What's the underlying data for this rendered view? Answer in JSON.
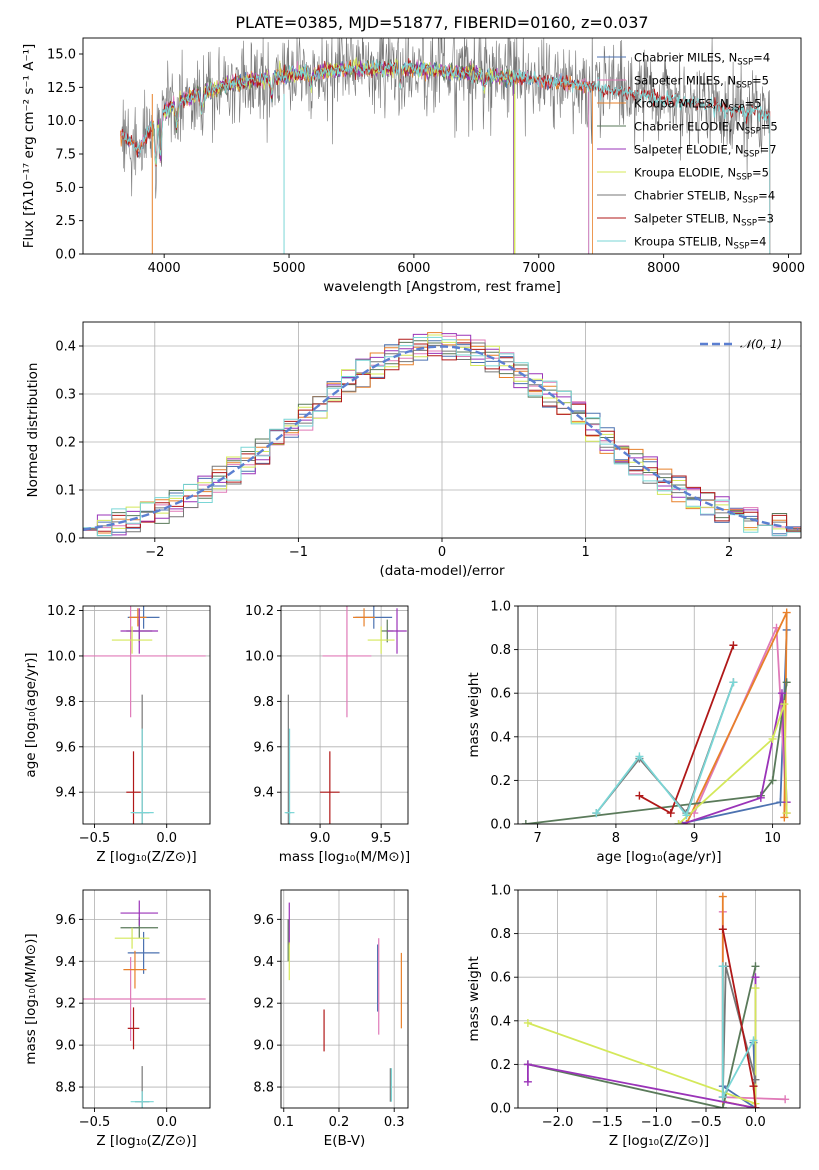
{
  "colors": {
    "Chabrier MILES": "#4c72b0",
    "Salpeter MILES": "#e07ab8",
    "Kroupa MILES": "#e8802a",
    "Chabrier ELODIE": "#5a7a5a",
    "Salpeter ELODIE": "#9a33b8",
    "Kroupa ELODIE": "#d4e85a",
    "Chabrier STELIB": "#777777",
    "Salpeter STELIB": "#b01818",
    "Kroupa STELIB": "#7ad6d6"
  },
  "chart_data": [
    {
      "id": "spectrum",
      "type": "line",
      "title": "PLATE=0385, MJD=51877, FIBERID=0160, z=0.037",
      "xlabel": "wavelength [Angstrom, rest frame]",
      "ylabel": "Flux [fλ10⁻¹⁷ erg cm⁻² s⁻¹ A⁻¹]",
      "xlim": [
        3350,
        9100
      ],
      "ylim": [
        0,
        16.2
      ],
      "xticks": [
        4000,
        5000,
        6000,
        7000,
        8000,
        9000
      ],
      "yticks": [
        0.0,
        2.5,
        5.0,
        7.5,
        10.0,
        12.5,
        15.0
      ],
      "legend_position": "top-right",
      "continuum": [
        [
          3660,
          9.0
        ],
        [
          3800,
          7.8
        ],
        [
          3950,
          10.4
        ],
        [
          4200,
          11.8
        ],
        [
          4500,
          12.7
        ],
        [
          5000,
          13.4
        ],
        [
          5500,
          13.9
        ],
        [
          6000,
          13.9
        ],
        [
          6500,
          13.5
        ],
        [
          7000,
          13.0
        ],
        [
          7400,
          12.6
        ],
        [
          8000,
          11.6
        ],
        [
          8500,
          11.0
        ],
        [
          8850,
          10.4
        ]
      ],
      "series": [
        {
          "name": "Chabrier MILES, N_SSP=4",
          "legend_name": "Chabrier MILES, N",
          "legend_value": "4",
          "range": [
            3650,
            7400
          ]
        },
        {
          "name": "Salpeter MILES, N_SSP=5",
          "legend_name": "Salpeter MILES, N",
          "legend_value": "5",
          "range": [
            3650,
            7400
          ]
        },
        {
          "name": "Kroupa MILES, N_SSP=5",
          "legend_name": "Kroupa MILES, N",
          "legend_value": "5",
          "range": [
            3650,
            7430
          ]
        },
        {
          "name": "Chabrier ELODIE, N_SSP=5",
          "legend_name": "Chabrier ELODIE, N",
          "legend_value": "5",
          "range": [
            3900,
            6800
          ]
        },
        {
          "name": "Salpeter ELODIE, N_SSP=7",
          "legend_name": "Salpeter ELODIE, N",
          "legend_value": "7",
          "range": [
            3900,
            6800
          ]
        },
        {
          "name": "Kroupa ELODIE, N_SSP=5",
          "legend_name": "Kroupa ELODIE, N",
          "legend_value": "5",
          "range": [
            3900,
            6810
          ]
        },
        {
          "name": "Chabrier STELIB, N_SSP=4",
          "legend_name": "Chabrier STELIB, N",
          "legend_value": "4",
          "range": [
            3660,
            8850
          ]
        },
        {
          "name": "Salpeter STELIB, N_SSP=3",
          "legend_name": "Salpeter STELIB, N",
          "legend_value": "3",
          "range": [
            3660,
            8850
          ]
        },
        {
          "name": "Kroupa STELIB, N_SSP=4",
          "legend_name": "Kroupa STELIB, N",
          "legend_value": "4",
          "range": [
            3660,
            8850
          ]
        }
      ],
      "legend_subscript": "SSP"
    },
    {
      "id": "residuals",
      "type": "line",
      "xlabel": "(data-model)/error",
      "ylabel": "Normed distribution",
      "xlim": [
        -2.5,
        2.5
      ],
      "ylim": [
        0,
        0.45
      ],
      "xticks": [
        -2,
        -1,
        0,
        1,
        2
      ],
      "yticks": [
        0.0,
        0.1,
        0.2,
        0.3,
        0.4
      ],
      "legend_label": "𝒩(0, 1)",
      "legend_position": "top-right",
      "gaussian": {
        "mean": 0,
        "sigma": 1
      }
    },
    {
      "id": "age_vs_Z",
      "type": "scatter",
      "xlabel": "Z [log₁₀(Z/Z⊙)]",
      "ylabel": "age  [log₁₀(age/yr)]",
      "xlim": [
        -0.58,
        0.3
      ],
      "ylim": [
        9.26,
        10.22
      ],
      "xticks": [
        -0.5,
        0.0
      ],
      "yticks": [
        9.4,
        9.6,
        9.8,
        10.0,
        10.2
      ],
      "points": [
        {
          "series": "Chabrier MILES",
          "x": -0.16,
          "xerr": 0.11,
          "y": 10.17,
          "yerr": 0.05
        },
        {
          "series": "Salpeter MILES",
          "x": -0.25,
          "xerr": 0.52,
          "y": 10.0,
          "yerr": 0.27
        },
        {
          "series": "Kroupa MILES",
          "x": -0.2,
          "xerr": 0.06,
          "y": 10.17,
          "yerr": 0.04
        },
        {
          "series": "Chabrier ELODIE",
          "x": -0.19,
          "xerr": 0.09,
          "y": 10.11,
          "yerr": 0.05
        },
        {
          "series": "Salpeter ELODIE",
          "x": -0.19,
          "xerr": 0.13,
          "y": 10.11,
          "yerr": 0.1
        },
        {
          "series": "Kroupa ELODIE",
          "x": -0.24,
          "xerr": 0.14,
          "y": 10.07,
          "yerr": 0.06
        },
        {
          "series": "Chabrier STELIB",
          "x": -0.17,
          "xerr": 0.05,
          "y": 9.31,
          "yerr": 0.52
        },
        {
          "series": "Salpeter STELIB",
          "x": -0.23,
          "xerr": 0.05,
          "y": 9.4,
          "yerr": 0.18
        },
        {
          "series": "Kroupa STELIB",
          "x": -0.17,
          "xerr": 0.08,
          "y": 9.31,
          "yerr": 0.37
        }
      ]
    },
    {
      "id": "age_vs_mass",
      "type": "scatter",
      "xlabel": "mass [log₁₀(M/M⊙)]",
      "ylabel": "",
      "xlim": [
        8.68,
        9.72
      ],
      "ylim": [
        9.26,
        10.22
      ],
      "xticks": [
        9.0,
        9.5
      ],
      "yticks": [
        9.4,
        9.6,
        9.8,
        10.0,
        10.2
      ],
      "points": [
        {
          "series": "Chabrier MILES",
          "x": 9.44,
          "xerr": 0.15,
          "y": 10.17,
          "yerr": 0.05
        },
        {
          "series": "Salpeter MILES",
          "x": 9.22,
          "xerr": 0.2,
          "y": 10.0,
          "yerr": 0.27
        },
        {
          "series": "Kroupa MILES",
          "x": 9.36,
          "xerr": 0.09,
          "y": 10.17,
          "yerr": 0.04
        },
        {
          "series": "Chabrier ELODIE",
          "x": 9.55,
          "xerr": 0.05,
          "y": 10.11,
          "yerr": 0.05
        },
        {
          "series": "Salpeter ELODIE",
          "x": 9.63,
          "xerr": 0.08,
          "y": 10.11,
          "yerr": 0.1
        },
        {
          "series": "Kroupa ELODIE",
          "x": 9.5,
          "xerr": 0.11,
          "y": 10.07,
          "yerr": 0.06
        },
        {
          "series": "Chabrier STELIB",
          "x": 8.74,
          "xerr": 0.02,
          "y": 9.31,
          "yerr": 0.52
        },
        {
          "series": "Salpeter STELIB",
          "x": 9.08,
          "xerr": 0.08,
          "y": 9.4,
          "yerr": 0.18
        },
        {
          "series": "Kroupa STELIB",
          "x": 8.75,
          "xerr": 0.04,
          "y": 9.31,
          "yerr": 0.37
        }
      ]
    },
    {
      "id": "mass_weight_vs_age",
      "type": "line",
      "xlabel": "age  [log₁₀(age/yr)]",
      "ylabel": "mass weight",
      "xlim": [
        6.75,
        10.35
      ],
      "ylim": [
        0,
        1.0
      ],
      "xticks": [
        7,
        8,
        9,
        10
      ],
      "yticks": [
        0.0,
        0.2,
        0.4,
        0.6,
        0.8,
        1.0
      ],
      "series": [
        {
          "name": "Chabrier MILES",
          "points": [
            [
              8.8,
              0.0
            ],
            [
              10.1,
              0.1
            ],
            [
              10.18,
              0.89
            ]
          ]
        },
        {
          "name": "Salpeter MILES",
          "points": [
            [
              9.0,
              0.05
            ],
            [
              10.05,
              0.9
            ],
            [
              10.18,
              0.05
            ]
          ]
        },
        {
          "name": "Kroupa MILES",
          "points": [
            [
              8.9,
              0.0
            ],
            [
              10.18,
              0.97
            ],
            [
              10.15,
              0.03
            ]
          ]
        },
        {
          "name": "Chabrier ELODIE",
          "points": [
            [
              6.85,
              0.0
            ],
            [
              9.85,
              0.13
            ],
            [
              10.0,
              0.2
            ],
            [
              10.18,
              0.65
            ]
          ]
        },
        {
          "name": "Salpeter ELODIE",
          "points": [
            [
              8.85,
              0.0
            ],
            [
              9.85,
              0.12
            ],
            [
              10.12,
              0.6
            ],
            [
              10.18,
              0.1
            ]
          ]
        },
        {
          "name": "Kroupa ELODIE",
          "points": [
            [
              8.8,
              0.0
            ],
            [
              10.0,
              0.39
            ],
            [
              10.15,
              0.55
            ],
            [
              10.18,
              0.05
            ]
          ]
        },
        {
          "name": "Chabrier STELIB",
          "points": [
            [
              7.75,
              0.05
            ],
            [
              8.3,
              0.3
            ],
            [
              8.9,
              0.05
            ],
            [
              9.5,
              0.65
            ]
          ]
        },
        {
          "name": "Salpeter STELIB",
          "points": [
            [
              8.3,
              0.13
            ],
            [
              8.7,
              0.05
            ],
            [
              9.5,
              0.82
            ]
          ]
        },
        {
          "name": "Kroupa STELIB",
          "points": [
            [
              7.75,
              0.05
            ],
            [
              8.3,
              0.31
            ],
            [
              8.9,
              0.04
            ],
            [
              9.5,
              0.65
            ]
          ]
        }
      ]
    },
    {
      "id": "mass_vs_Z",
      "type": "scatter",
      "xlabel": "Z [log₁₀(Z/Z⊙)]",
      "ylabel": "mass [log₁₀(M/M⊙)]",
      "xlim": [
        -0.58,
        0.3
      ],
      "ylim": [
        8.7,
        9.74
      ],
      "xticks": [
        -0.5,
        0.0
      ],
      "yticks": [
        8.8,
        9.0,
        9.2,
        9.4,
        9.6
      ],
      "points": [
        {
          "series": "Chabrier MILES",
          "x": -0.16,
          "xerr": 0.11,
          "y": 9.44,
          "yerr": 0.1
        },
        {
          "series": "Salpeter MILES",
          "x": -0.25,
          "xerr": 0.52,
          "y": 9.22,
          "yerr": 0.2
        },
        {
          "series": "Kroupa MILES",
          "x": -0.22,
          "xerr": 0.08,
          "y": 9.36,
          "yerr": 0.09
        },
        {
          "series": "Chabrier ELODIE",
          "x": -0.19,
          "xerr": 0.13,
          "y": 9.56,
          "yerr": 0.05
        },
        {
          "series": "Salpeter ELODIE",
          "x": -0.19,
          "xerr": 0.13,
          "y": 9.63,
          "yerr": 0.06
        },
        {
          "series": "Kroupa ELODIE",
          "x": -0.24,
          "xerr": 0.12,
          "y": 9.51,
          "yerr": 0.05
        },
        {
          "series": "Chabrier STELIB",
          "x": -0.17,
          "xerr": 0.05,
          "y": 8.73,
          "yerr": 0.17
        },
        {
          "series": "Salpeter STELIB",
          "x": -0.23,
          "xerr": 0.04,
          "y": 9.08,
          "yerr": 0.1
        },
        {
          "series": "Kroupa STELIB",
          "x": -0.17,
          "xerr": 0.08,
          "y": 8.73,
          "yerr": 0.05
        }
      ]
    },
    {
      "id": "mass_vs_ebv",
      "type": "scatter",
      "xlabel": "E(B-V)",
      "ylabel": "",
      "xlim": [
        0.095,
        0.325
      ],
      "ylim": [
        8.7,
        9.74
      ],
      "xticks": [
        0.1,
        0.2,
        0.3
      ],
      "yticks": [
        8.8,
        9.0,
        9.2,
        9.4,
        9.6
      ],
      "points": [
        {
          "series": "Chabrier MILES",
          "x": 0.27,
          "y": 9.32,
          "yerr": 0.16
        },
        {
          "series": "Salpeter MILES",
          "x": 0.272,
          "y": 9.28,
          "yerr": 0.23
        },
        {
          "series": "Kroupa MILES",
          "x": 0.313,
          "y": 9.26,
          "yerr": 0.18
        },
        {
          "series": "Chabrier ELODIE",
          "x": 0.108,
          "y": 9.5,
          "yerr": 0.1
        },
        {
          "series": "Salpeter ELODIE",
          "x": 0.11,
          "y": 9.58,
          "yerr": 0.1
        },
        {
          "series": "Kroupa ELODIE",
          "x": 0.11,
          "y": 9.4,
          "yerr": 0.09
        },
        {
          "series": "Chabrier STELIB",
          "x": 0.293,
          "y": 8.81,
          "yerr": 0.08
        },
        {
          "series": "Salpeter STELIB",
          "x": 0.173,
          "y": 9.07,
          "yerr": 0.1
        },
        {
          "series": "Kroupa STELIB",
          "x": 0.295,
          "y": 8.81,
          "yerr": 0.08
        }
      ]
    },
    {
      "id": "mass_weight_vs_Z",
      "type": "line",
      "xlabel": "Z [log₁₀(Z/Z⊙)]",
      "ylabel": "mass weight",
      "xlim": [
        -2.4,
        0.45
      ],
      "ylim": [
        0,
        1.0
      ],
      "xticks": [
        -2.0,
        -1.5,
        -1.0,
        -0.5,
        0.0
      ],
      "yticks": [
        0.0,
        0.2,
        0.4,
        0.6,
        0.8,
        1.0
      ],
      "series": [
        {
          "name": "Chabrier MILES",
          "points": [
            [
              -0.33,
              0.65
            ],
            [
              -0.33,
              0.1
            ],
            [
              0.0,
              0.0
            ],
            [
              -0.02,
              0.3
            ]
          ]
        },
        {
          "name": "Salpeter MILES",
          "points": [
            [
              -0.33,
              0.9
            ],
            [
              -0.33,
              0.05
            ],
            [
              0.3,
              0.04
            ]
          ]
        },
        {
          "name": "Kroupa MILES",
          "points": [
            [
              -0.33,
              0.97
            ],
            [
              -0.33,
              0.03
            ],
            [
              0.0,
              0.0
            ]
          ]
        },
        {
          "name": "Chabrier ELODIE",
          "points": [
            [
              -2.3,
              0.2
            ],
            [
              -0.33,
              0.0
            ],
            [
              0.0,
              0.65
            ]
          ]
        },
        {
          "name": "Salpeter ELODIE",
          "points": [
            [
              -2.3,
              0.12
            ],
            [
              -2.3,
              0.2
            ],
            [
              0.0,
              0.0
            ],
            [
              0.0,
              0.6
            ]
          ]
        },
        {
          "name": "Kroupa ELODIE",
          "points": [
            [
              -2.3,
              0.39
            ],
            [
              0.0,
              0.02
            ],
            [
              0.0,
              0.55
            ]
          ]
        },
        {
          "name": "Chabrier STELIB",
          "points": [
            [
              -0.33,
              0.05
            ],
            [
              -0.3,
              0.65
            ],
            [
              0.0,
              0.13
            ]
          ]
        },
        {
          "name": "Salpeter STELIB",
          "points": [
            [
              -0.33,
              0.82
            ],
            [
              -0.02,
              0.1
            ],
            [
              0.0,
              0.0
            ]
          ]
        },
        {
          "name": "Kroupa STELIB",
          "points": [
            [
              -0.33,
              0.65
            ],
            [
              -0.33,
              0.05
            ],
            [
              -0.02,
              0.31
            ]
          ]
        }
      ]
    }
  ]
}
